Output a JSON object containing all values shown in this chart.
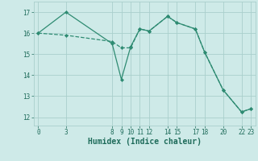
{
  "line1_x": [
    0,
    3,
    8,
    9,
    10,
    11,
    12,
    14,
    15,
    17,
    18,
    20,
    22,
    23
  ],
  "line1_y": [
    16.0,
    15.9,
    15.6,
    15.3,
    15.3,
    16.2,
    16.1,
    16.8,
    16.5,
    16.2,
    15.1,
    13.3,
    12.25,
    12.4
  ],
  "line2_x": [
    0,
    3,
    8,
    9,
    10,
    11,
    12,
    14,
    15,
    17,
    18,
    20,
    22,
    23
  ],
  "line2_y": [
    16.0,
    17.0,
    15.5,
    13.8,
    15.35,
    16.2,
    16.1,
    16.8,
    16.5,
    16.2,
    15.1,
    13.3,
    12.25,
    12.4
  ],
  "color": "#2e8b72",
  "bg_color": "#ceeae8",
  "grid_color": "#aacfcc",
  "xlabel": "Humidex (Indice chaleur)",
  "xticks": [
    0,
    3,
    8,
    9,
    10,
    11,
    12,
    14,
    15,
    17,
    18,
    20,
    22,
    23
  ],
  "yticks": [
    12,
    13,
    14,
    15,
    16,
    17
  ],
  "xlim": [
    -0.5,
    23.5
  ],
  "ylim": [
    11.6,
    17.5
  ],
  "font_color": "#1e6b5a",
  "font_size_tick": 5.5,
  "font_size_label": 7.0
}
